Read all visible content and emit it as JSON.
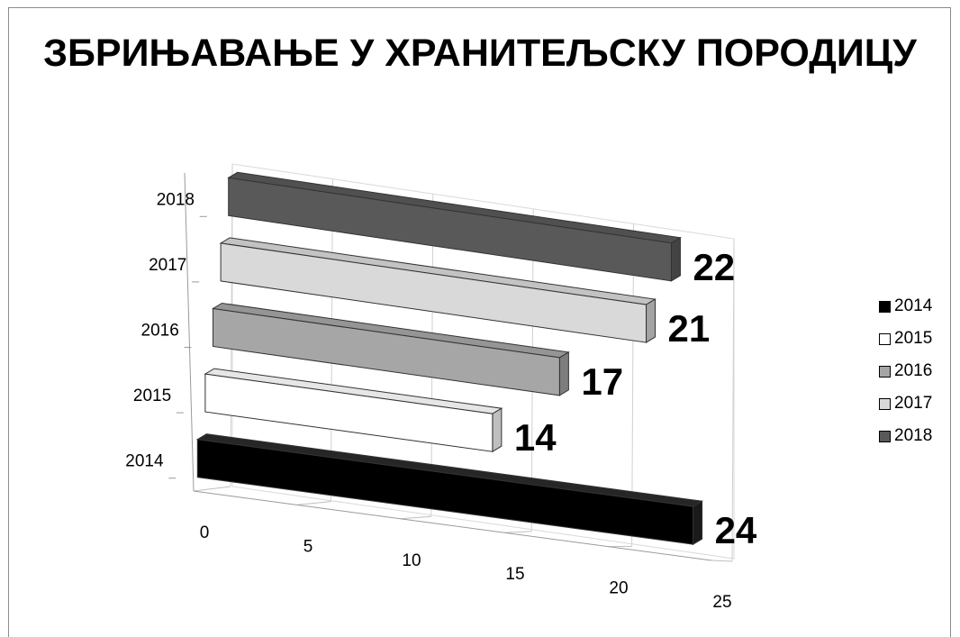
{
  "chart_data": {
    "type": "bar",
    "orientation": "horizontal",
    "title": "ЗБРИЊАВАЊЕ У ХРАНИТЕЉСКУ ПОРОДИЦУ",
    "categories": [
      "2014",
      "2015",
      "2016",
      "2017",
      "2018"
    ],
    "values": [
      24,
      14,
      17,
      21,
      22
    ],
    "data_labels": [
      "24",
      "14",
      "17",
      "21",
      "22"
    ],
    "xlim": [
      0,
      25
    ],
    "x_ticks": [
      "0",
      "5",
      "10",
      "15",
      "20",
      "25"
    ],
    "grid": true,
    "legend": {
      "placement": "right",
      "entries": [
        "2014",
        "2015",
        "2016",
        "2017",
        "2018"
      ]
    },
    "colors": {
      "2014": "#000000",
      "2015": "#ffffff",
      "2016": "#a6a6a6",
      "2017": "#d9d9d9",
      "2018": "#595959"
    }
  }
}
